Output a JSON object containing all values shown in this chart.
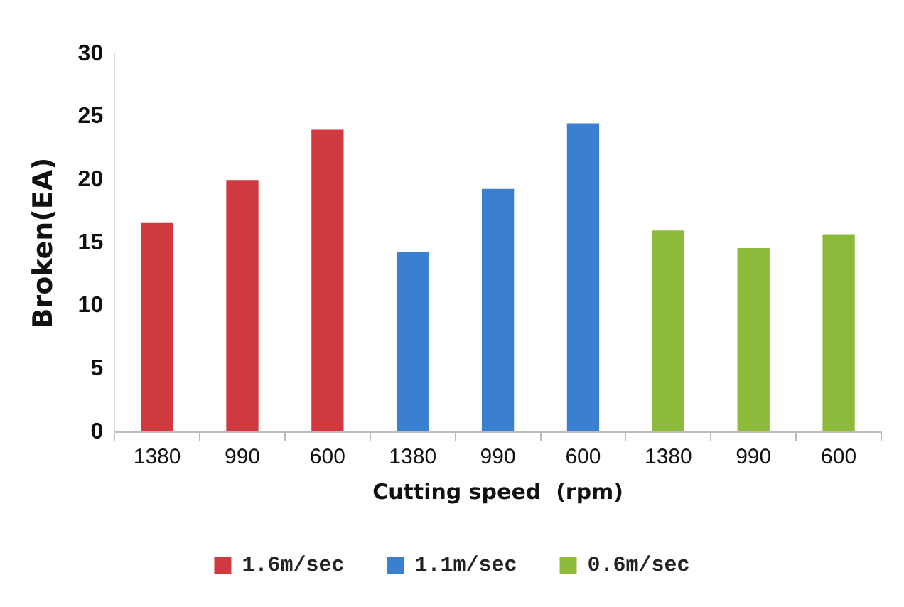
{
  "chart_data": {
    "type": "bar",
    "xlabel": "Cutting speed  (rpm)",
    "ylabel": "Broken(EA)",
    "categories": [
      "1380",
      "990",
      "600",
      "1380",
      "990",
      "600",
      "1380",
      "990",
      "600"
    ],
    "series": [
      {
        "name": "1.6m/sec",
        "color": "#d0393f",
        "values": [
          16.6,
          20,
          24,
          null,
          null,
          null,
          null,
          null,
          null
        ]
      },
      {
        "name": "1.1m/sec",
        "color": "#3b7fd0",
        "values": [
          null,
          null,
          null,
          14.3,
          19.3,
          24.5,
          null,
          null,
          null
        ]
      },
      {
        "name": "0.6m/sec",
        "color": "#8cbb3c",
        "values": [
          null,
          null,
          null,
          null,
          null,
          null,
          16,
          14.6,
          15.7
        ]
      }
    ],
    "ylim": [
      0,
      30
    ],
    "yticks": [
      0,
      5,
      10,
      15,
      20,
      25,
      30
    ],
    "grid": false,
    "legend": "bottom"
  }
}
